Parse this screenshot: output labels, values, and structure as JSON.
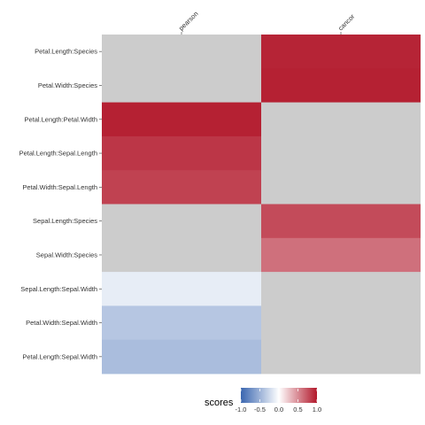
{
  "chart_data": {
    "type": "heatmap",
    "x_categories": [
      "pearson",
      "cancor"
    ],
    "y_categories": [
      "Petal.Length:Species",
      "Petal.Width:Species",
      "Petal.Length:Petal.Width",
      "Petal.Length:Sepal.Length",
      "Petal.Width:Sepal.Length",
      "Sepal.Length:Species",
      "Sepal.Width:Species",
      "Sepal.Length:Sepal.Width",
      "Petal.Width:Sepal.Width",
      "Petal.Length:Sepal.Width"
    ],
    "values": [
      [
        null,
        0.95
      ],
      [
        null,
        0.96
      ],
      [
        0.96,
        null
      ],
      [
        0.87,
        null
      ],
      [
        0.82,
        null
      ],
      [
        null,
        0.78
      ],
      [
        null,
        0.62
      ],
      [
        -0.12,
        null
      ],
      [
        -0.37,
        null
      ],
      [
        -0.43,
        null
      ]
    ],
    "missing_color": "#cccccc",
    "color_scale": {
      "min": -1.0,
      "max": 1.0,
      "low_color": "#3a66b0",
      "mid_color": "#ffffff",
      "high_color": "#b2182b"
    },
    "legend": {
      "title": "scores",
      "position": "bottom",
      "ticks": [
        "-1.0",
        "-0.5",
        "0.0",
        "0.5",
        "1.0"
      ],
      "tick_values": [
        -1.0,
        -0.5,
        0.0,
        0.5,
        1.0
      ]
    }
  }
}
